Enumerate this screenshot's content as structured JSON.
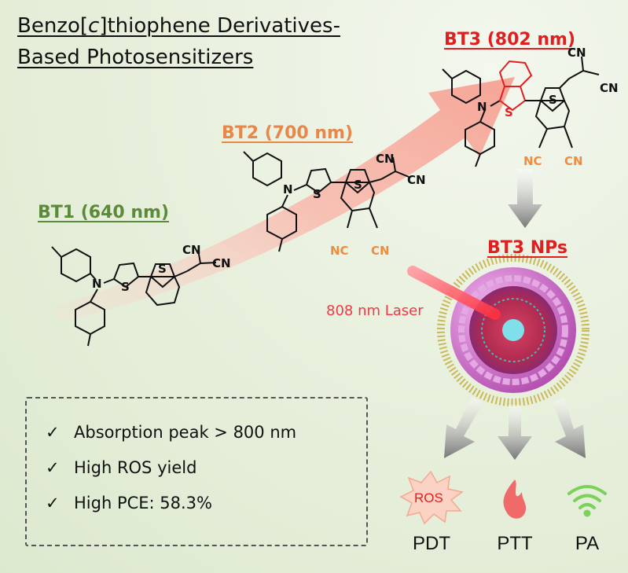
{
  "title": {
    "line1_pre": "Benzo[",
    "line1_italic": "c",
    "line1_post": "]thiophene Derivatives-",
    "line2": "Based Photosensitizers"
  },
  "compounds": [
    {
      "label": "BT1 (640 nm)",
      "color": "#5a8a3a"
    },
    {
      "label": "BT2 (700 nm)",
      "color": "#e8874a"
    },
    {
      "label": "BT3 (802 nm)",
      "color": "#e02020"
    }
  ],
  "substituents": {
    "cn": "CN",
    "nc": "NC",
    "s": "S",
    "n": "N"
  },
  "nanoparticle": {
    "label": "BT3 NPs",
    "laser": "808 nm Laser"
  },
  "features": {
    "check": "✓",
    "items": [
      "Absorption peak > 800 nm",
      "High ROS yield",
      "High PCE: 58.3%"
    ]
  },
  "outcomes": {
    "ros": "ROS",
    "items": [
      "PDT",
      "PTT",
      "PA"
    ]
  },
  "colors": {
    "bt1": "#5a8a3a",
    "bt2": "#e8874a",
    "bt3": "#e02020",
    "cn_orange": "#f08c3c",
    "arrow": "#f7b3a8"
  }
}
